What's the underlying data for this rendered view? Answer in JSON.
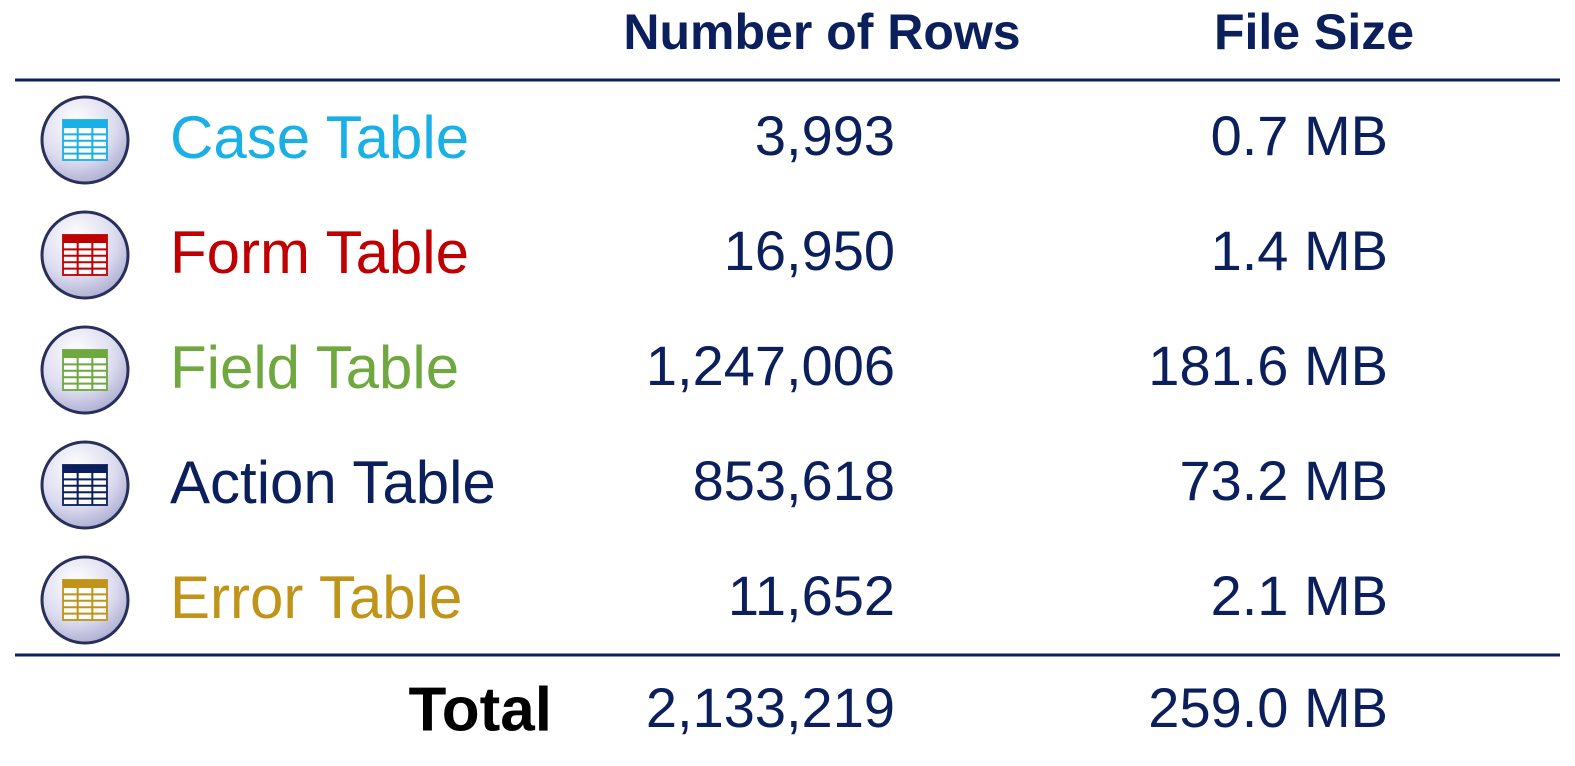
{
  "table": {
    "columns": [
      "Number of Rows",
      "File Size"
    ],
    "rows": [
      {
        "name": "Case Table",
        "color": "#19b0e6",
        "rows": "3,993",
        "size": "0.7 MB"
      },
      {
        "name": "Form Table",
        "color": "#c00000",
        "rows": "16,950",
        "size": "1.4 MB"
      },
      {
        "name": "Field Table",
        "color": "#6ea83e",
        "rows": "1,247,006",
        "size": "181.6 MB"
      },
      {
        "name": "Action Table",
        "color": "#0a1f5c",
        "rows": "853,618",
        "size": "73.2 MB"
      },
      {
        "name": "Error Table",
        "color": "#c09418",
        "rows": "11,652",
        "size": "2.1 MB"
      }
    ],
    "total": {
      "label": "Total",
      "rows": "2,133,219",
      "size": "259.0 MB"
    }
  }
}
